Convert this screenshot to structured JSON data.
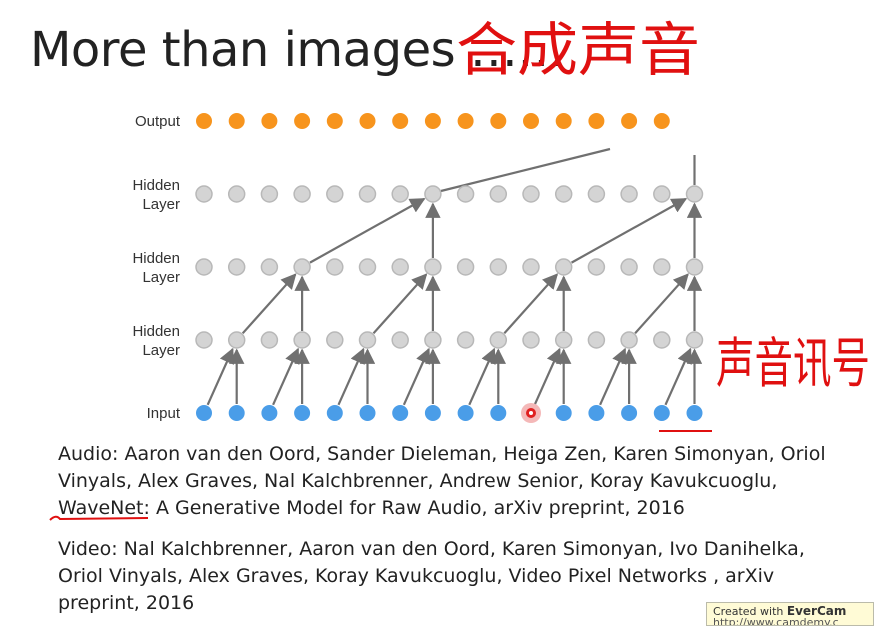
{
  "title": "More than images ……",
  "handwriting": {
    "title_note": "合成声音",
    "side_note": "声音讯号",
    "color": "#e01010"
  },
  "diagram": {
    "layer_labels": [
      [
        "Output"
      ],
      [
        "Hidden",
        "Layer"
      ],
      [
        "Hidden",
        "Layer"
      ],
      [
        "Hidden",
        "Layer"
      ],
      [
        "Input"
      ]
    ],
    "colors": {
      "output": "#f7941d",
      "hidden": "#d4d4d4",
      "input": "#4a9de8",
      "arrow": "#707070"
    },
    "nodes_per_layer": 16,
    "cursor_node_index": 10
  },
  "references": {
    "audio_prefix": "Audio: Aaron van den Oord, Sander Dieleman, Heiga Zen, Karen Simonyan, Oriol Vinyals, Alex Graves, Nal Kalchbrenner, Andrew Senior, Koray Kavukcuoglu, ",
    "audio_name": "WaveNet",
    "audio_suffix": ": A Generative Model for Raw Audio, arXiv preprint, 2016",
    "video": "Video: Nal Kalchbrenner, Aaron van den Oord, Karen Simonyan, Ivo Danihelka, Oriol Vinyals, Alex Graves, Koray Kavukcuoglu, Video Pixel Networks , arXiv preprint, 2016"
  },
  "watermark": {
    "prefix": "Created with ",
    "brand": "EverCam",
    "url": "http://www.camdemy.c"
  }
}
